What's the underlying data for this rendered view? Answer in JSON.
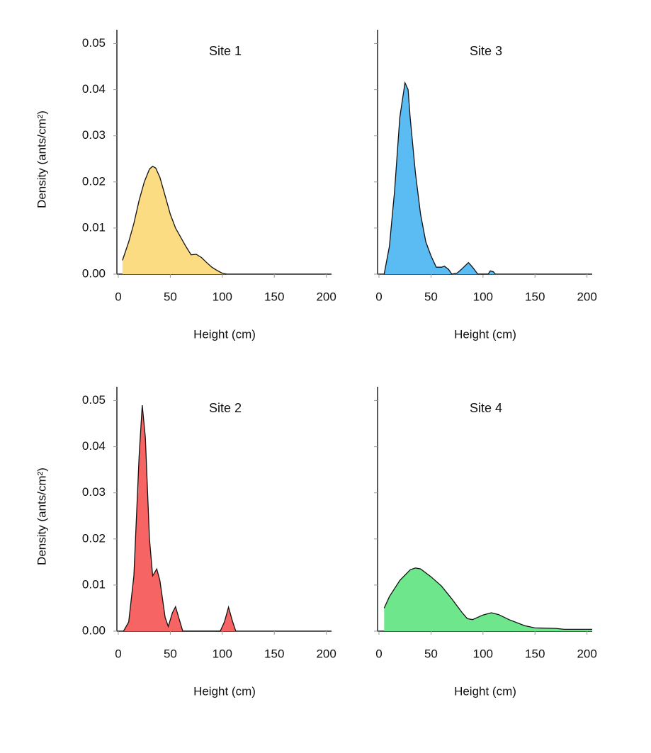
{
  "chart_data": [
    {
      "type": "area",
      "title": "Site 1",
      "xlabel": "Height (cm)",
      "ylabel": "Density (ants/cm²)",
      "color": "#fbdc82",
      "x": [
        4,
        10,
        15,
        20,
        25,
        30,
        33,
        36,
        40,
        45,
        50,
        55,
        60,
        65,
        70,
        75,
        80,
        85,
        90,
        95,
        100,
        104
      ],
      "values": [
        0.003,
        0.007,
        0.011,
        0.016,
        0.02,
        0.0228,
        0.0234,
        0.023,
        0.021,
        0.017,
        0.013,
        0.01,
        0.008,
        0.006,
        0.0042,
        0.0043,
        0.0036,
        0.0025,
        0.0015,
        0.0008,
        0.0002,
        0
      ],
      "xlim": [
        0,
        205
      ],
      "ylim": [
        0,
        0.053
      ],
      "xticks": [
        0,
        50,
        100,
        150,
        200
      ],
      "yticks": [
        {
          "value": 0,
          "label": "0.00"
        },
        0.01,
        0.02,
        0.03,
        0.04,
        0.05
      ],
      "ytick_labels": true
    },
    {
      "type": "area",
      "title": "Site 3",
      "xlabel": "Height (cm)",
      "color": "#5bbcf4",
      "x": [
        5,
        10,
        15,
        20,
        25,
        28,
        30,
        35,
        40,
        45,
        50,
        55,
        60,
        63,
        67,
        70,
        75,
        80,
        86,
        90,
        95,
        105,
        107,
        110,
        112
      ],
      "values": [
        0,
        0.006,
        0.018,
        0.034,
        0.0415,
        0.04,
        0.034,
        0.022,
        0.013,
        0.007,
        0.004,
        0.0015,
        0.0015,
        0.0017,
        0.001,
        0,
        0.0002,
        0.0012,
        0.0025,
        0.0015,
        0,
        0,
        0.0007,
        0.0005,
        0
      ],
      "xlim": [
        0,
        205
      ],
      "ylim": [
        0,
        0.053
      ],
      "xticks": [
        0,
        50,
        100,
        150,
        200
      ],
      "yticks": [
        0,
        0.01,
        0.02,
        0.03,
        0.04,
        0.05
      ],
      "ytick_labels": false
    },
    {
      "type": "area",
      "title": "Site 2",
      "xlabel": "Height (cm)",
      "ylabel": "Density (ants/cm²)",
      "color": "#f76464",
      "x": [
        5,
        10,
        15,
        20,
        23,
        26,
        30,
        33,
        37,
        40,
        45,
        48,
        52,
        55,
        58,
        62,
        98,
        102,
        106,
        110,
        113
      ],
      "values": [
        0,
        0.002,
        0.012,
        0.038,
        0.049,
        0.042,
        0.02,
        0.012,
        0.0135,
        0.011,
        0.003,
        0.001,
        0.004,
        0.0053,
        0.003,
        0,
        0,
        0.002,
        0.0052,
        0.002,
        0
      ],
      "xlim": [
        0,
        205
      ],
      "ylim": [
        0,
        0.053
      ],
      "xticks": [
        0,
        50,
        100,
        150,
        200
      ],
      "yticks": [
        {
          "value": 0,
          "label": "0.00"
        },
        0.01,
        0.02,
        0.03,
        0.04,
        0.05
      ],
      "ytick_labels": true
    },
    {
      "type": "area",
      "title": "Site 4",
      "xlabel": "Height (cm)",
      "color": "#6ee68c",
      "x": [
        5,
        10,
        20,
        30,
        35,
        40,
        50,
        60,
        70,
        80,
        85,
        90,
        100,
        108,
        115,
        125,
        140,
        150,
        170,
        178,
        205
      ],
      "values": [
        0.005,
        0.0075,
        0.011,
        0.0133,
        0.0137,
        0.0135,
        0.0118,
        0.0098,
        0.007,
        0.004,
        0.0027,
        0.0025,
        0.0035,
        0.004,
        0.0036,
        0.0025,
        0.0012,
        0.0007,
        0.0006,
        0.0004,
        0.0004
      ],
      "xlim": [
        0,
        205
      ],
      "ylim": [
        0,
        0.053
      ],
      "xticks": [
        0,
        50,
        100,
        150,
        200
      ],
      "yticks": [
        0,
        0.01,
        0.02,
        0.03,
        0.04,
        0.05
      ],
      "ytick_labels": false
    }
  ]
}
